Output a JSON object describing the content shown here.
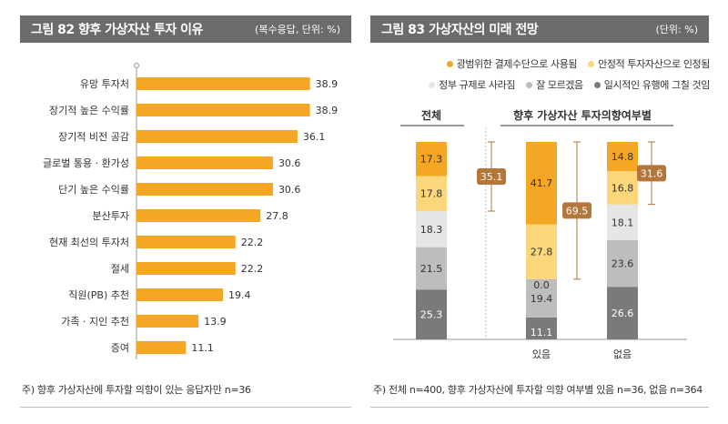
{
  "figure82": {
    "title": "그림 82  향후 가상자산 투자 이유",
    "unit": "(복수응답, 단위: %)",
    "footnote": "주) 향후 가상자산에 투자할 의향이 있는 응답자만 n=36"
  },
  "figure83": {
    "title": "그림 83  가상자산의 미래 전망",
    "unit": "(단위: %)",
    "footnote": "주) 전체 n=400, 향후 가상자산에 투자할 의향 여부별 있음 n=36, 없음 n=364",
    "group_label_total": "전체",
    "group_label_intent": "향후 가상자산 투자의향여부별",
    "legend": [
      {
        "label": "광범위한 결제수단으로 사용됨",
        "color": "#f5a623"
      },
      {
        "label": "안정적 투자자산으로 인정됨",
        "color": "#fbd67a"
      },
      {
        "label": "정부 규제로 사라짐",
        "color": "#e6e6e6"
      },
      {
        "label": "잘 모르겠음",
        "color": "#bdbdbd"
      },
      {
        "label": "일시적인 유행에 그칠 것임",
        "color": "#7a7a7a"
      }
    ]
  },
  "chart_data": [
    {
      "type": "bar",
      "orientation": "horizontal",
      "title": "향후 가상자산 투자 이유",
      "unit": "%",
      "categories": [
        "유망 투자처",
        "장기적 높은 수익률",
        "장기적 비전 공감",
        "글로벌 통용 · 환가성",
        "단기 높은 수익률",
        "분산투자",
        "현재 최선의 투자처",
        "절세",
        "직원(PB) 추천",
        "가족 · 지인 추천",
        "증여"
      ],
      "values": [
        38.9,
        38.9,
        36.1,
        30.6,
        30.6,
        27.8,
        22.2,
        22.2,
        19.4,
        13.9,
        11.1
      ],
      "value_labels": [
        "38.9",
        "38.9",
        "36.1",
        "30.6",
        "30.6",
        "27.8",
        "22.2",
        "22.2",
        "19.4",
        "13.9",
        "11.1"
      ],
      "xlim": [
        0,
        40
      ],
      "bar_color": "#f5a623"
    },
    {
      "type": "bar",
      "orientation": "vertical",
      "stacked": true,
      "title": "가상자산의 미래 전망",
      "unit": "%",
      "categories": [
        "전체",
        "있음",
        "없음"
      ],
      "series": [
        {
          "name": "광범위한 결제수단으로 사용됨",
          "values": [
            17.3,
            41.7,
            14.8
          ],
          "labels": [
            "17.3",
            "41.7",
            "14.8"
          ]
        },
        {
          "name": "안정적 투자자산으로 인정됨",
          "values": [
            17.8,
            27.8,
            16.8
          ],
          "labels": [
            "17.8",
            "27.8",
            "16.8"
          ]
        },
        {
          "name": "정부 규제로 사라짐",
          "values": [
            18.3,
            0.0,
            18.1
          ],
          "labels": [
            "18.3",
            "0.0",
            "18.1"
          ]
        },
        {
          "name": "잘 모르겠음",
          "values": [
            21.5,
            19.4,
            23.6
          ],
          "labels": [
            "21.5",
            "19.4",
            "23.6"
          ]
        },
        {
          "name": "일시적인 유행에 그칠 것임",
          "values": [
            25.3,
            11.1,
            26.6
          ],
          "labels": [
            "25.3",
            "11.1",
            "26.6"
          ]
        }
      ],
      "sum_labels": [
        "35.1",
        "69.5",
        "31.6"
      ],
      "ylim": [
        0,
        100
      ]
    }
  ]
}
